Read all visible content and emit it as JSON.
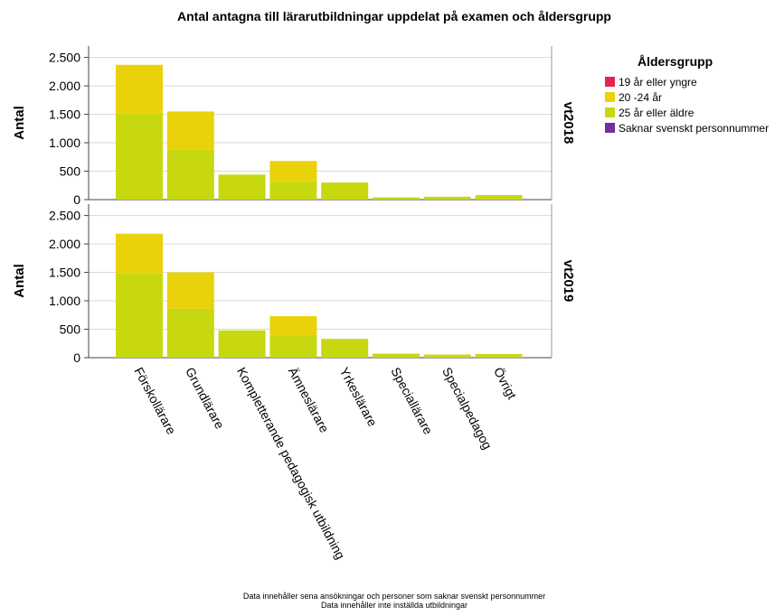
{
  "chart_data": {
    "type": "bar",
    "stacked": true,
    "title": "Antal antagna till lärarutbildningar uppdelat på examen och åldersgrupp",
    "ylabel": "Antal",
    "ylim": [
      0,
      2700
    ],
    "yticks": [
      0,
      500,
      1000,
      1500,
      2000,
      2500
    ],
    "ytick_labels": [
      "0",
      "500",
      "1.000",
      "1.500",
      "2.000",
      "2.500"
    ],
    "grid": true,
    "categories": [
      "Förskollärare",
      "Grundlärare",
      "Kompletterande pedagogisk utbildning",
      "Ämneslärare",
      "Yrkeslärare",
      "Speciallärare",
      "Specialpedagog",
      "Övrigt"
    ],
    "legend": {
      "title": "Åldersgrupp",
      "position": "right",
      "entries": [
        {
          "name": "19 år eller yngre",
          "color": "#e8234f"
        },
        {
          "name": "20 -24 år",
          "color": "#ead20a"
        },
        {
          "name": "25 år eller äldre",
          "color": "#c8d810"
        },
        {
          "name": "Saknar svenskt personnummer",
          "color": "#7030a0"
        }
      ]
    },
    "panels": [
      {
        "label": "vt2018",
        "series": [
          {
            "name": "19 år eller yngre",
            "values": [
              0,
              0,
              0,
              0,
              0,
              0,
              0,
              0
            ]
          },
          {
            "name": "25 år eller äldre",
            "values": [
              1510,
              880,
              440,
              320,
              300,
              40,
              50,
              80
            ]
          },
          {
            "name": "20 -24 år",
            "values": [
              860,
              670,
              0,
              360,
              0,
              0,
              0,
              0
            ]
          },
          {
            "name": "Saknar svenskt personnummer",
            "values": [
              0,
              0,
              0,
              0,
              0,
              0,
              0,
              0
            ]
          }
        ]
      },
      {
        "label": "vt2019",
        "series": [
          {
            "name": "19 år eller yngre",
            "values": [
              0,
              0,
              0,
              0,
              0,
              0,
              0,
              0
            ]
          },
          {
            "name": "25 år eller äldre",
            "values": [
              1490,
              860,
              480,
              390,
              330,
              70,
              55,
              65
            ]
          },
          {
            "name": "20 -24 år",
            "values": [
              690,
              640,
              0,
              340,
              0,
              0,
              0,
              0
            ]
          },
          {
            "name": "Saknar svenskt personnummer",
            "values": [
              0,
              0,
              0,
              0,
              0,
              0,
              0,
              0
            ]
          }
        ]
      }
    ]
  },
  "footnotes": [
    "Data innehåller sena ansökningar och personer som saknar svenskt personnummer",
    "Data innehåller inte inställda utbildningar"
  ]
}
